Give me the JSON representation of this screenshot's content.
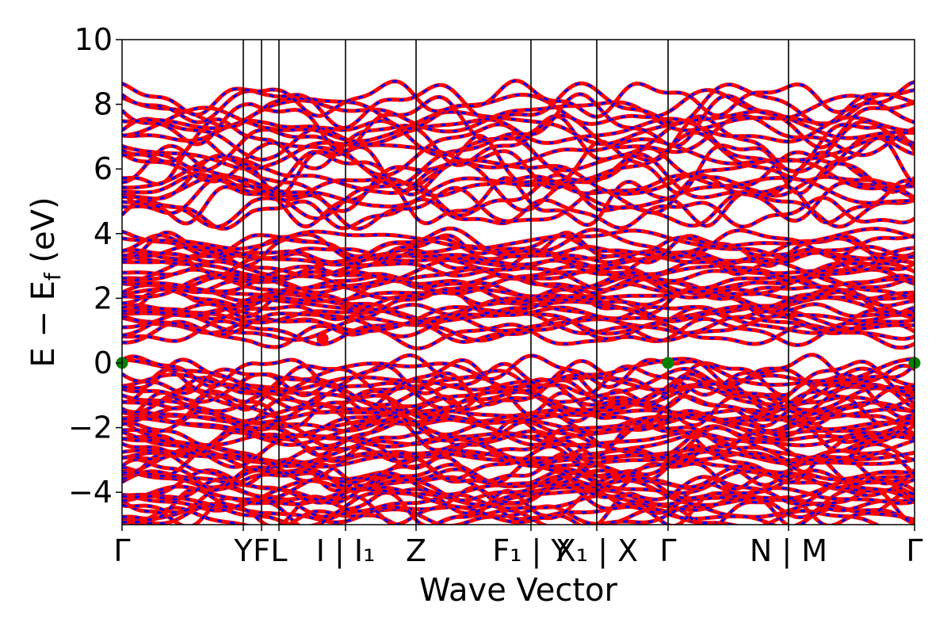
{
  "chart_data": {
    "type": "line",
    "title": "",
    "xlabel": "Wave Vector",
    "ylabel": "E − E",
    "ylabel_sub": "f",
    "ylabel_unit": " (eV)",
    "ylim": [
      -5,
      10
    ],
    "yticks": [
      {
        "value": -4,
        "label": "−4"
      },
      {
        "value": -2,
        "label": "−2"
      },
      {
        "value": 0,
        "label": "0"
      },
      {
        "value": 2,
        "label": "2"
      },
      {
        "value": 4,
        "label": "4"
      },
      {
        "value": 6,
        "label": "6"
      },
      {
        "value": 8,
        "label": "8"
      },
      {
        "value": 10,
        "label": "10"
      }
    ],
    "xlim": [
      0,
      1
    ],
    "kpath": [
      {
        "x": 0.0,
        "label": "Γ",
        "line": false
      },
      {
        "x": 0.153,
        "label": "Y",
        "line": true
      },
      {
        "x": 0.176,
        "label": "F",
        "line": true
      },
      {
        "x": 0.198,
        "label": "L",
        "line": true
      },
      {
        "x": 0.282,
        "label": "I | I₁",
        "line": true
      },
      {
        "x": 0.371,
        "label": "Z",
        "line": true
      },
      {
        "x": 0.516,
        "label": "F₁ | Y",
        "line": true
      },
      {
        "x": 0.599,
        "label": "X₁ | X",
        "line": true
      },
      {
        "x": 0.689,
        "label": "Γ",
        "line": true
      },
      {
        "x": 0.841,
        "label": "N | M",
        "line": true
      },
      {
        "x": 1.0,
        "label": "Γ",
        "line": false
      }
    ],
    "series": [],
    "band_groups": {
      "conduction_upper": {
        "min": 4.4,
        "max": 8.5
      },
      "conduction_lower": {
        "min": 0.75,
        "max": 4.0
      },
      "valence": {
        "min": -5.0,
        "max": 0.0
      }
    },
    "band_line_colors": {
      "spin_up": "#ff0000",
      "spin_down": "#0000ff"
    },
    "markers": [
      {
        "name": "VBM",
        "x": 0.0,
        "y": 0.0,
        "color": "#008000"
      },
      {
        "name": "VBM",
        "x": 0.689,
        "y": 0.0,
        "color": "#008000"
      },
      {
        "name": "VBM",
        "x": 1.0,
        "y": 0.0,
        "color": "#008000"
      },
      {
        "name": "CBM",
        "x": 0.253,
        "y": 0.75,
        "color": "#ff0000"
      }
    ],
    "grid": false,
    "legend": "none"
  }
}
